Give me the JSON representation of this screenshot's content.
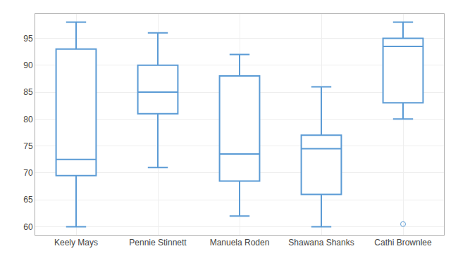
{
  "chart_data": {
    "type": "box",
    "categories": [
      "Keely Mays",
      "Pennie Stinnett",
      "Manuela Roden",
      "Shawana Shanks",
      "Cathi Brownlee"
    ],
    "boxes": [
      {
        "whislo": 60,
        "q1": 69.5,
        "med": 72.5,
        "q3": 93,
        "whishi": 98,
        "fliers": []
      },
      {
        "whislo": 71,
        "q1": 81,
        "med": 85,
        "q3": 90,
        "whishi": 96,
        "fliers": []
      },
      {
        "whislo": 62,
        "q1": 68.5,
        "med": 73.5,
        "q3": 88,
        "whishi": 92,
        "fliers": []
      },
      {
        "whislo": 60,
        "q1": 66,
        "med": 74.5,
        "q3": 77,
        "whishi": 86,
        "fliers": []
      },
      {
        "whislo": 80,
        "q1": 83,
        "med": 93.5,
        "q3": 95,
        "whishi": 98,
        "fliers": [
          60.5
        ]
      }
    ],
    "color": "#5b9bd5",
    "ylim": [
      58.5,
      99.5
    ],
    "yticks": [
      60,
      65,
      70,
      75,
      80,
      85,
      90,
      95
    ],
    "grid": true
  }
}
